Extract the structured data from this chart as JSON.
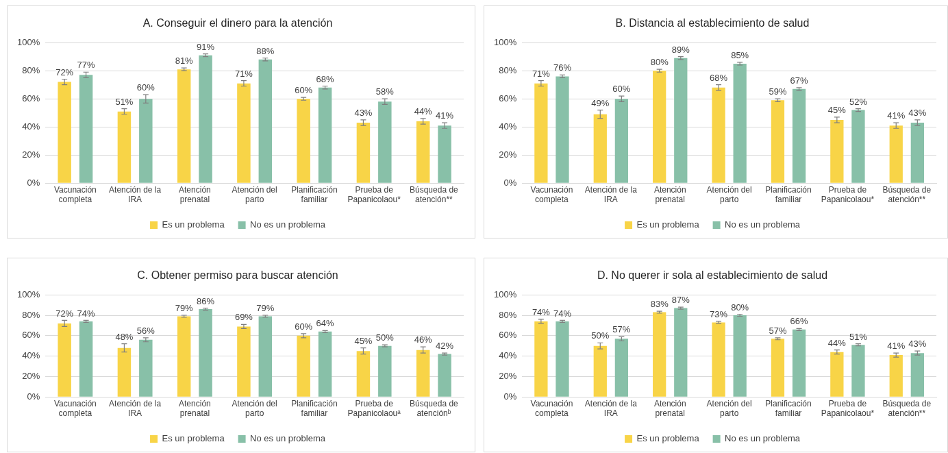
{
  "chart_data": [
    {
      "type": "bar",
      "title": "A. Conseguir el dinero para la atención",
      "categories": [
        "Vacunación completa",
        "Atención de la IRA",
        "Atención prenatal",
        "Atención del parto",
        "Planificación familiar",
        "Prueba de Papanicolaou*",
        "Búsqueda de atención**"
      ],
      "ylim": [
        0,
        100
      ],
      "yticks": [
        {
          "value": 0,
          "label": "0%"
        },
        {
          "value": 20,
          "label": "20%"
        },
        {
          "value": 40,
          "label": "40%"
        },
        {
          "value": 60,
          "label": "60%"
        },
        {
          "value": 80,
          "label": "80%"
        },
        {
          "value": 100,
          "label": "100%"
        }
      ],
      "grid": "y",
      "legend": "bottom",
      "series": [
        {
          "name": "Es un problema",
          "color": "#f8d447",
          "values": [
            72,
            51,
            81,
            71,
            60,
            43,
            44
          ],
          "value_labels": [
            "72%",
            "51%",
            "81%",
            "71%",
            "60%",
            "43%",
            "44%"
          ],
          "errors": [
            2,
            2,
            1,
            2,
            1,
            2,
            2
          ]
        },
        {
          "name": "No es un problema",
          "color": "#88c0a8",
          "values": [
            77,
            60,
            91,
            88,
            68,
            58,
            41
          ],
          "value_labels": [
            "77%",
            "60%",
            "91%",
            "88%",
            "68%",
            "58%",
            "41%"
          ],
          "errors": [
            2,
            3,
            1,
            1,
            1,
            2,
            2
          ]
        }
      ]
    },
    {
      "type": "bar",
      "title": "B. Distancia al establecimiento de salud",
      "categories": [
        "Vacunación completa",
        "Atención de la IRA",
        "Atención prenatal",
        "Atención del parto",
        "Planificación familiar",
        "Prueba de Papanicolaou*",
        "Búsqueda de atención**"
      ],
      "ylim": [
        0,
        100
      ],
      "yticks": [
        {
          "value": 0,
          "label": "0%"
        },
        {
          "value": 20,
          "label": "20%"
        },
        {
          "value": 40,
          "label": "40%"
        },
        {
          "value": 60,
          "label": "60%"
        },
        {
          "value": 80,
          "label": "80%"
        },
        {
          "value": 100,
          "label": "100%"
        }
      ],
      "grid": "y",
      "legend": "bottom",
      "series": [
        {
          "name": "Es un problema",
          "color": "#f8d447",
          "values": [
            71,
            49,
            80,
            68,
            59,
            45,
            41
          ],
          "value_labels": [
            "71%",
            "49%",
            "80%",
            "68%",
            "59%",
            "45%",
            "41%"
          ],
          "errors": [
            2,
            3,
            1,
            2,
            1,
            2,
            2
          ]
        },
        {
          "name": "No es un problema",
          "color": "#88c0a8",
          "values": [
            76,
            60,
            89,
            85,
            67,
            52,
            43
          ],
          "value_labels": [
            "76%",
            "60%",
            "89%",
            "85%",
            "67%",
            "52%",
            "43%"
          ],
          "errors": [
            1,
            2,
            1,
            1,
            1,
            1,
            2
          ]
        }
      ]
    },
    {
      "type": "bar",
      "title": "C. Obtener permiso para buscar atención",
      "categories": [
        "Vacunación completa",
        "Atención de la IRA",
        "Atención prenatal",
        "Atención del parto",
        "Planificación familiar",
        "Prueba de Papanicolaouᵃ",
        "Búsqueda de atenciónᵇ"
      ],
      "ylim": [
        0,
        100
      ],
      "yticks": [
        {
          "value": 0,
          "label": "0%"
        },
        {
          "value": 20,
          "label": "20%"
        },
        {
          "value": 40,
          "label": "40%"
        },
        {
          "value": 60,
          "label": "60%"
        },
        {
          "value": 80,
          "label": "80%"
        },
        {
          "value": 100,
          "label": "100%"
        }
      ],
      "grid": "y",
      "legend": "bottom",
      "series": [
        {
          "name": "Es un problema",
          "color": "#f8d447",
          "values": [
            72,
            48,
            79,
            69,
            60,
            45,
            46
          ],
          "value_labels": [
            "72%",
            "48%",
            "79%",
            "69%",
            "60%",
            "45%",
            "46%"
          ],
          "errors": [
            3,
            4,
            1,
            2,
            2,
            3,
            3
          ]
        },
        {
          "name": "No es un problema",
          "color": "#88c0a8",
          "values": [
            74,
            56,
            86,
            79,
            64,
            50,
            42
          ],
          "value_labels": [
            "74%",
            "56%",
            "86%",
            "79%",
            "64%",
            "50%",
            "42%"
          ],
          "errors": [
            1,
            2,
            1,
            1,
            1,
            1,
            1
          ]
        }
      ]
    },
    {
      "type": "bar",
      "title": "D. No querer ir sola al establecimiento de salud",
      "categories": [
        "Vacunación completa",
        "Atención de la IRA",
        "Atención prenatal",
        "Atención del parto",
        "Planificación familiar",
        "Prueba de Papanicolaou*",
        "Búsqueda de atención**"
      ],
      "ylim": [
        0,
        100
      ],
      "yticks": [
        {
          "value": 0,
          "label": "0%"
        },
        {
          "value": 20,
          "label": "20%"
        },
        {
          "value": 40,
          "label": "40%"
        },
        {
          "value": 60,
          "label": "60%"
        },
        {
          "value": 80,
          "label": "80%"
        },
        {
          "value": 100,
          "label": "100%"
        }
      ],
      "grid": "y",
      "legend": "bottom",
      "series": [
        {
          "name": "Es un problema",
          "color": "#f8d447",
          "values": [
            74,
            50,
            83,
            73,
            57,
            44,
            41
          ],
          "value_labels": [
            "74%",
            "50%",
            "83%",
            "73%",
            "57%",
            "44%",
            "41%"
          ],
          "errors": [
            2,
            3,
            1,
            1,
            1,
            2,
            2
          ]
        },
        {
          "name": "No es un problema",
          "color": "#88c0a8",
          "values": [
            74,
            57,
            87,
            80,
            66,
            51,
            43
          ],
          "value_labels": [
            "74%",
            "57%",
            "87%",
            "80%",
            "66%",
            "51%",
            "43%"
          ],
          "errors": [
            1,
            2,
            1,
            1,
            1,
            1,
            2
          ]
        }
      ]
    }
  ]
}
